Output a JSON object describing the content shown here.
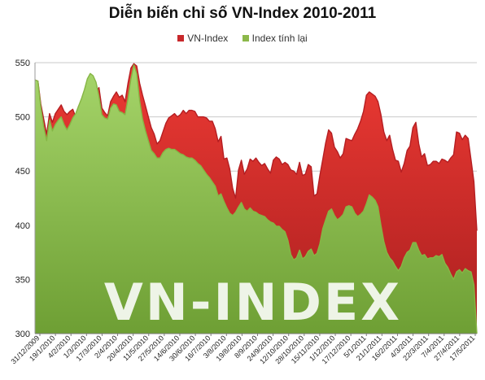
{
  "chart_data": {
    "type": "area",
    "title": "Diễn biến chỉ số VN-Index 2010-2011",
    "legend_position": "top-center",
    "grid": "horizontal",
    "watermark": "VN-INDEX",
    "ylim": [
      300,
      550
    ],
    "y_ticks": [
      "300",
      "350",
      "400",
      "450",
      "500",
      "550"
    ],
    "x_ticks": [
      "31/12/2009",
      "19/1/2010",
      "4/2/2010",
      "1/3/2010",
      "17/3/2010",
      "2/4/2010",
      "20/4/2010",
      "11/5/2010",
      "27/5/2010",
      "14/6/2010",
      "30/6/2010",
      "16/7/2010",
      "3/8/2010",
      "19/8/2010",
      "8/9/2010",
      "24/9/2010",
      "12/10/2010",
      "28/10/2010",
      "15/11/2010",
      "1/12/2010",
      "17/12/2010",
      "5/1/2011",
      "21/1/2011",
      "16/2/2011",
      "4/3/2011",
      "22/3/2011",
      "7/4/2011",
      "27/4/2011",
      "17/5/2011"
    ],
    "series": [
      {
        "name": "VN-Index",
        "color": "#C8282B",
        "values": [
          534,
          533,
          512,
          498,
          484,
          503,
          495,
          503,
          507,
          511,
          505,
          502,
          505,
          507,
          500,
          510,
          512,
          520,
          528,
          520,
          517,
          523,
          527,
          508,
          504,
          501,
          514,
          519,
          523,
          518,
          520,
          514,
          531,
          545,
          549,
          547,
          531,
          520,
          510,
          500,
          490,
          484,
          475,
          478,
          486,
          494,
          499,
          501,
          503,
          500,
          502,
          506,
          503,
          506,
          506,
          505,
          500,
          500,
          500,
          499,
          496,
          496,
          489,
          477,
          482,
          461,
          462,
          452,
          434,
          425,
          451,
          460,
          447,
          452,
          461,
          459,
          462,
          458,
          455,
          457,
          452,
          448,
          460,
          463,
          461,
          456,
          458,
          456,
          451,
          450,
          447,
          458,
          446,
          447,
          456,
          454,
          427,
          429,
          446,
          461,
          476,
          488,
          485,
          472,
          468,
          462,
          466,
          480,
          479,
          478,
          484,
          489,
          496,
          505,
          520,
          523,
          521,
          519,
          514,
          502,
          486,
          478,
          483,
          470,
          460,
          459,
          449,
          457,
          469,
          473,
          490,
          495,
          475,
          463,
          466,
          455,
          456,
          459,
          459,
          457,
          461,
          460,
          458,
          462,
          465,
          486,
          485,
          479,
          483,
          480,
          460,
          440,
          395
        ]
      },
      {
        "name": "Index tính lại",
        "color": "#8CB84A",
        "values": [
          534,
          533,
          509,
          491,
          478,
          497,
          487,
          493,
          497,
          500,
          493,
          488,
          493,
          499,
          503,
          510,
          517,
          525,
          535,
          540,
          538,
          532,
          519,
          502,
          499,
          498,
          508,
          512,
          511,
          505,
          504,
          502,
          517,
          535,
          548,
          540,
          515,
          498,
          487,
          478,
          469,
          466,
          462,
          462,
          467,
          470,
          471,
          470,
          470,
          468,
          466,
          465,
          463,
          462,
          462,
          460,
          457,
          455,
          451,
          447,
          444,
          440,
          436,
          427,
          429,
          422,
          416,
          411,
          409,
          412,
          417,
          421,
          415,
          413,
          416,
          413,
          412,
          410,
          409,
          408,
          405,
          403,
          402,
          399,
          399,
          396,
          394,
          386,
          373,
          368,
          370,
          377,
          369,
          371,
          376,
          378,
          372,
          374,
          383,
          397,
          405,
          413,
          415,
          409,
          405,
          407,
          410,
          417,
          418,
          417,
          411,
          408,
          410,
          413,
          420,
          428,
          426,
          423,
          417,
          400,
          385,
          375,
          370,
          367,
          362,
          358,
          362,
          370,
          375,
          377,
          384,
          384,
          377,
          372,
          373,
          369,
          370,
          370,
          372,
          371,
          373,
          365,
          361,
          355,
          350,
          357,
          359,
          356,
          360,
          358,
          357,
          345,
          300
        ]
      }
    ]
  }
}
